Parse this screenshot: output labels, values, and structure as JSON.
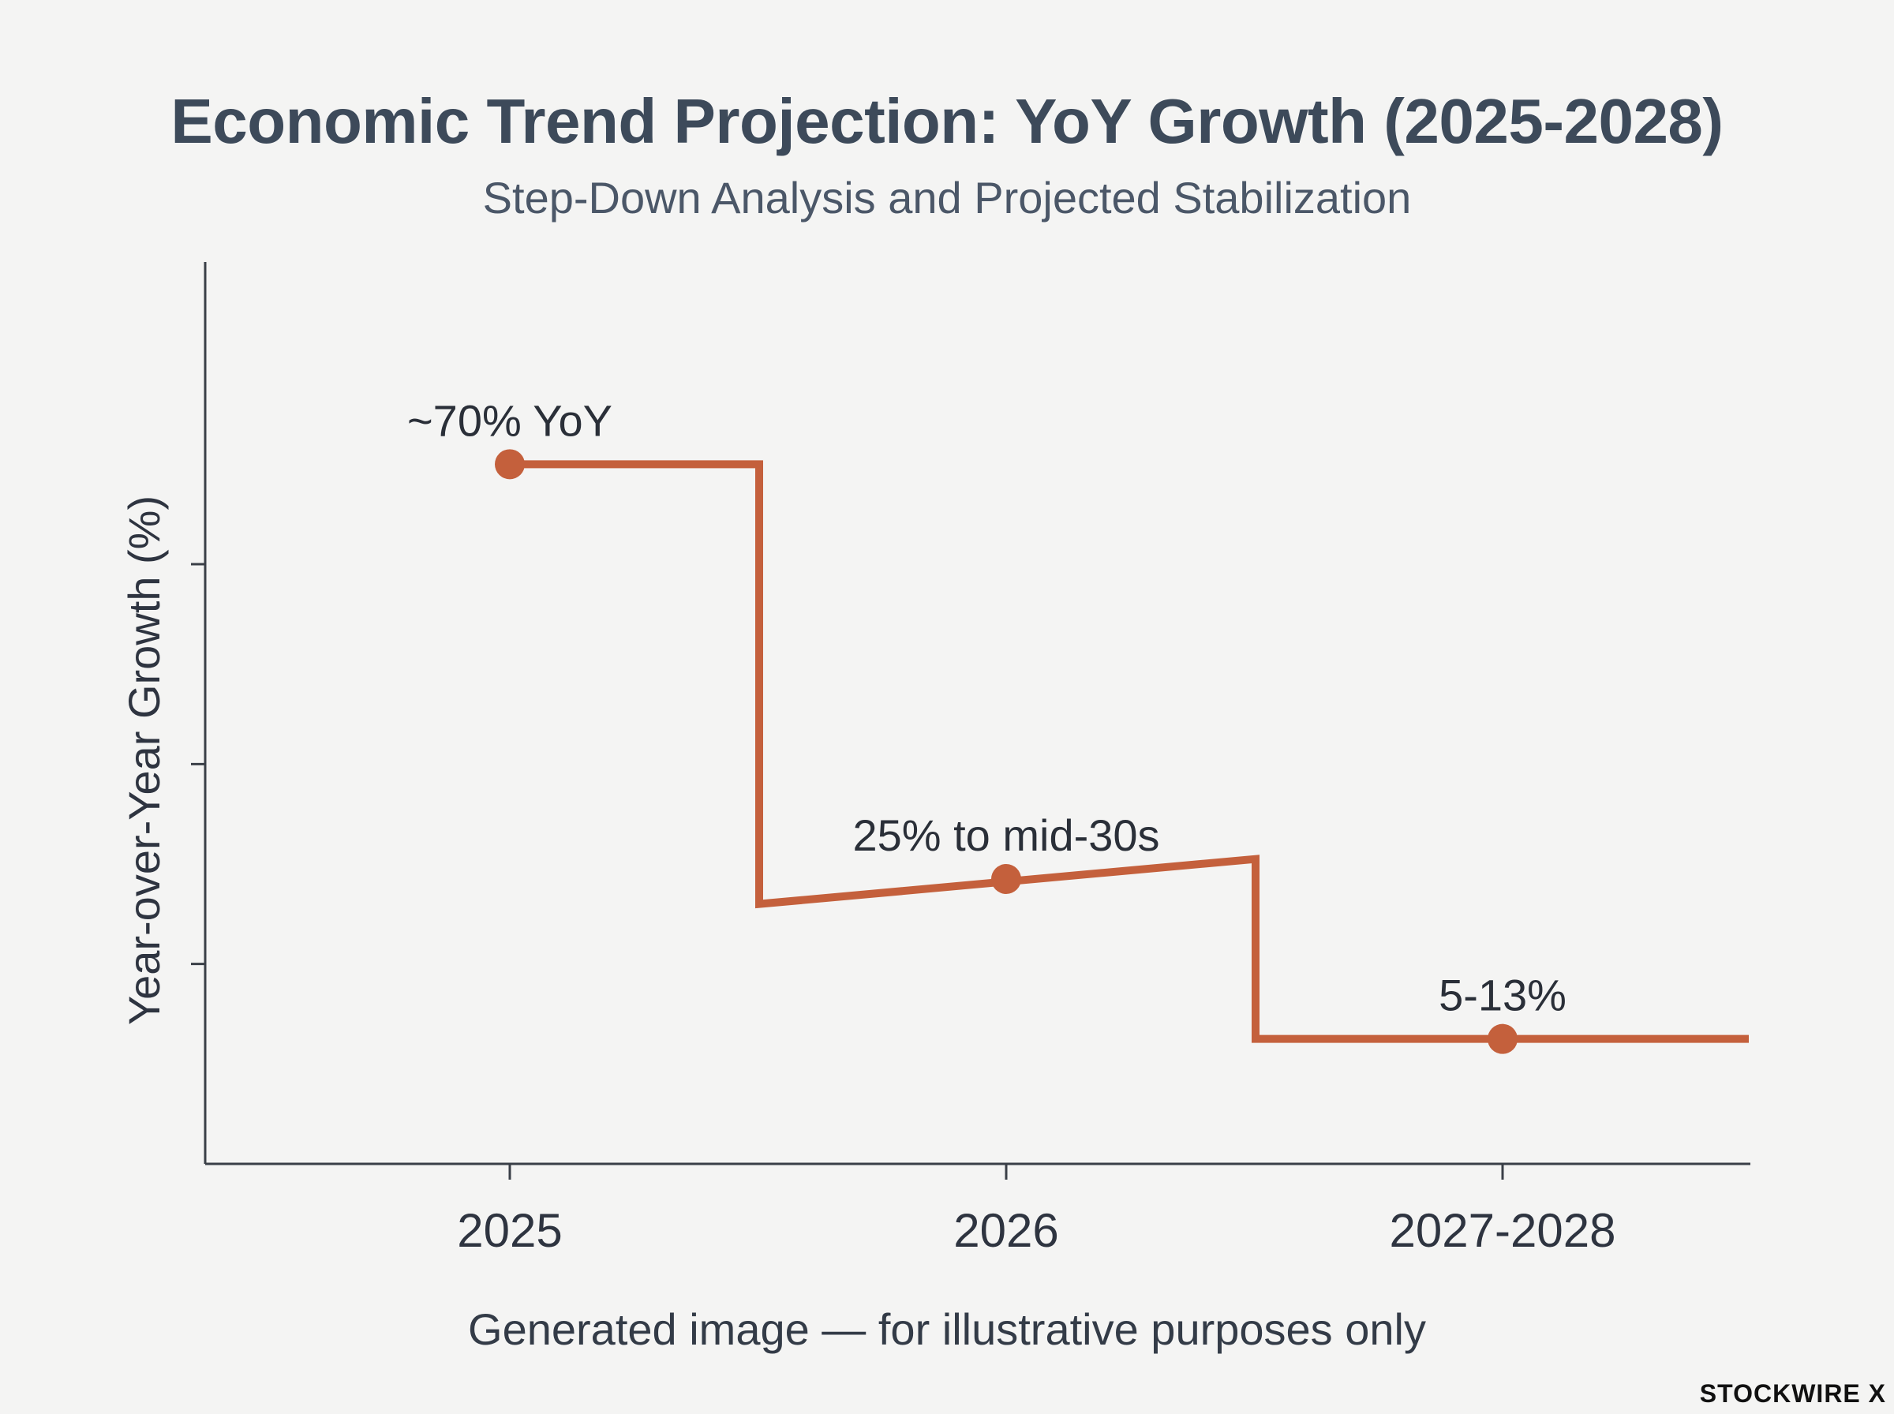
{
  "title": "Economic Trend Projection: YoY Growth (2025-2028)",
  "subtitle": "Step-Down Analysis and Projected Stabilization",
  "caption": "Generated image — for illustrative purposes only",
  "logo_text": "STOCKWIRE X",
  "colors": {
    "background": "#f4f4f3",
    "line": "#c4603c",
    "axis": "#3a3f47",
    "text": "#3d4a5a"
  },
  "chart_data": {
    "type": "line",
    "step": true,
    "title": "Economic Trend Projection: YoY Growth (2025-2028)",
    "subtitle": "Step-Down Analysis and Projected Stabilization",
    "xlabel": "",
    "ylabel": "Year-over-Year Growth (%)",
    "categories": [
      "2025",
      "2026",
      "2027-2028"
    ],
    "ylim": [
      0,
      90
    ],
    "ytick_values": [
      20,
      40,
      60
    ],
    "ytick_labels_shown": false,
    "grid": false,
    "legend": "none",
    "series": [
      {
        "values": [
          70,
          28.5,
          12.5
        ],
        "segment_start": [
          70,
          26,
          12.5
        ],
        "segment_end": [
          70,
          30.5,
          12.5
        ],
        "point_labels": [
          "~70% YoY",
          "25% to mid-30s",
          "5-13%"
        ]
      }
    ]
  }
}
